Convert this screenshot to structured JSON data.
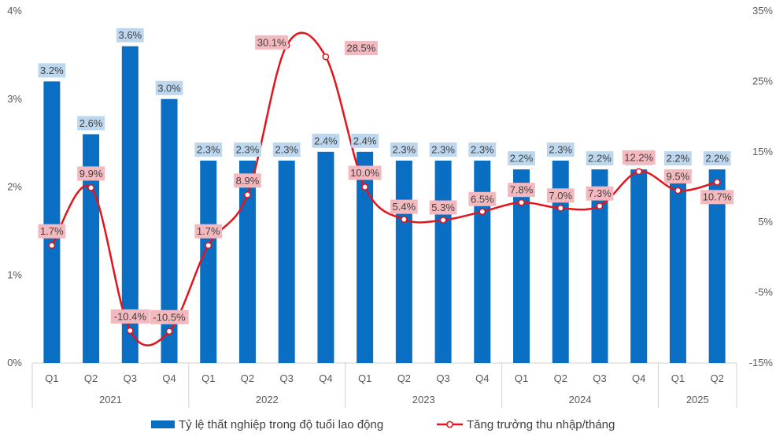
{
  "chart_data": {
    "type": "bar+line",
    "categories": [
      "Q1",
      "Q2",
      "Q3",
      "Q4",
      "Q1",
      "Q2",
      "Q3",
      "Q4",
      "Q1",
      "Q2",
      "Q3",
      "Q4",
      "Q1",
      "Q2",
      "Q3",
      "Q4",
      "Q1",
      "Q2"
    ],
    "year_groups": [
      {
        "label": "2021",
        "count": 4
      },
      {
        "label": "2022",
        "count": 4
      },
      {
        "label": "2023",
        "count": 4
      },
      {
        "label": "2024",
        "count": 4
      },
      {
        "label": "2025",
        "count": 2
      }
    ],
    "series": [
      {
        "name": "Tỷ lệ thất nghiệp trong độ tuổi lao động",
        "type": "bar",
        "axis": "left",
        "color": "#0a6fc2",
        "label_bg": "#bdd7ee",
        "values": [
          3.2,
          2.6,
          3.6,
          3.0,
          2.3,
          2.3,
          2.3,
          2.4,
          2.4,
          2.3,
          2.3,
          2.3,
          2.2,
          2.3,
          2.2,
          2.2,
          2.2,
          2.2
        ],
        "labels": [
          "3.2%",
          "2.6%",
          "3.6%",
          "3.0%",
          "2.3%",
          "2.3%",
          "2.3%",
          "2.4%",
          "2.4%",
          "2.3%",
          "2.3%",
          "2.3%",
          "2.2%",
          "2.3%",
          "2.2%",
          "2.2%",
          "2.2%",
          "2.2%"
        ]
      },
      {
        "name": "Tăng trưởng thu nhập/tháng",
        "type": "line",
        "axis": "right",
        "color": "#e3141b",
        "label_bg": "#f4b9be",
        "values": [
          1.7,
          9.9,
          -10.4,
          -10.5,
          1.7,
          8.9,
          30.1,
          28.5,
          10.0,
          5.4,
          5.3,
          6.5,
          7.8,
          7.0,
          7.3,
          12.2,
          9.5,
          10.7
        ],
        "labels": [
          "1.7%",
          "9.9%",
          "-10.4%",
          "-10.5%",
          "1.7%",
          "8.9%",
          "30.1%",
          "28.5%",
          "10.0%",
          "5.4%",
          "5.3%",
          "6.5%",
          "7.8%",
          "7.0%",
          "7.3%",
          "12.2%",
          "9.5%",
          "10.7%"
        ]
      }
    ],
    "left_axis": {
      "min": 0,
      "max": 4,
      "ticks": [
        "0%",
        "1%",
        "2%",
        "3%",
        "4%"
      ]
    },
    "right_axis": {
      "min": -15,
      "max": 35,
      "ticks": [
        "-15%",
        "-5%",
        "5%",
        "15%",
        "25%",
        "35%"
      ]
    },
    "legend": {
      "position": "bottom",
      "items": [
        "Tỷ lệ thất nghiệp trong độ tuổi lao động",
        "Tăng trưởng thu nhập/tháng"
      ]
    },
    "title": "",
    "grid": false
  }
}
